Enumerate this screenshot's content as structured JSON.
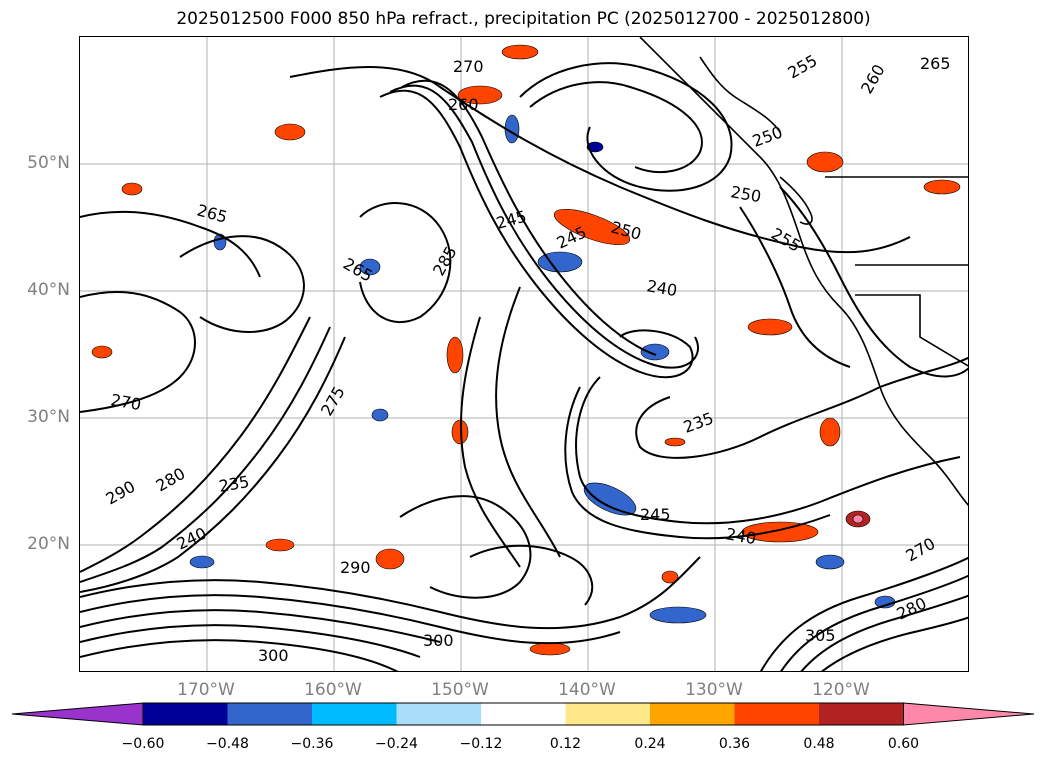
{
  "title": "2025012500 F000 850 hPa refract., precipitation PC (2025012700 - 2025012800)",
  "lat_labels": [
    "50°N",
    "40°N",
    "30°N",
    "20°N"
  ],
  "lon_labels": [
    "170°W",
    "160°W",
    "150°W",
    "140°W",
    "130°W",
    "120°W"
  ],
  "colorbar": {
    "ticks": [
      "−0.60",
      "−0.48",
      "−0.36",
      "−0.24",
      "−0.12",
      "0.12",
      "0.24",
      "0.36",
      "0.48",
      "0.60"
    ],
    "colors": [
      "#9933cc",
      "#000099",
      "#3366cc",
      "#00bbff",
      "#aaddf8",
      "#ffffff",
      "#ffe88a",
      "#ffa500",
      "#ff4400",
      "#b22222",
      "#ff88aa"
    ]
  },
  "contour_labels": [
    {
      "text": "270"
    },
    {
      "text": "260"
    },
    {
      "text": "265"
    },
    {
      "text": "255"
    },
    {
      "text": "260"
    },
    {
      "text": "265"
    },
    {
      "text": "250"
    },
    {
      "text": "245"
    },
    {
      "text": "245"
    },
    {
      "text": "250"
    },
    {
      "text": "240"
    },
    {
      "text": "285"
    },
    {
      "text": "265"
    },
    {
      "text": "270"
    },
    {
      "text": "290"
    },
    {
      "text": "280"
    },
    {
      "text": "235"
    },
    {
      "text": "240"
    },
    {
      "text": "235"
    },
    {
      "text": "245"
    },
    {
      "text": "240"
    },
    {
      "text": "290"
    },
    {
      "text": "300"
    },
    {
      "text": "300"
    },
    {
      "text": "305"
    },
    {
      "text": "280"
    },
    {
      "text": "270"
    },
    {
      "text": "275"
    },
    {
      "text": "250"
    },
    {
      "text": "255"
    }
  ]
}
